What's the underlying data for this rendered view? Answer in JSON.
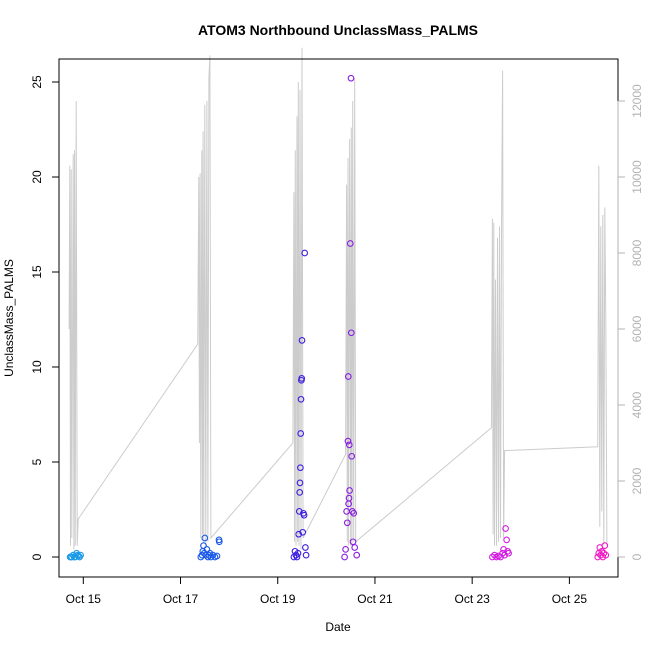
{
  "chart_data": {
    "type": "scatter",
    "title": "ATOM3 Northbound UnclassMass_PALMS",
    "xlabel": "Date",
    "ylabel": "UnclassMass_PALMS",
    "xlim": [
      "2017-10-14T12:00",
      "2017-10-26T00:00"
    ],
    "ylim": [
      0,
      25.2
    ],
    "x_ticks": [
      {
        "date": "2017-10-15",
        "label": "Oct 15"
      },
      {
        "date": "2017-10-17",
        "label": "Oct 17"
      },
      {
        "date": "2017-10-19",
        "label": "Oct 19"
      },
      {
        "date": "2017-10-21",
        "label": "Oct 21"
      },
      {
        "date": "2017-10-23",
        "label": "Oct 23"
      },
      {
        "date": "2017-10-25",
        "label": "Oct 25"
      }
    ],
    "y_ticks": [
      0,
      5,
      10,
      15,
      20,
      25
    ],
    "y2_ticks": [
      0,
      2000,
      4000,
      6000,
      8000,
      10000,
      12000
    ],
    "y2lim": [
      0,
      12900
    ],
    "line_color": "#cccccc",
    "grid": false,
    "legend": "none",
    "flights": [
      {
        "color": "#1e9be6",
        "points": [
          [
            "2017-10-14T17:30",
            0
          ],
          [
            "2017-10-14T17:50",
            0
          ],
          [
            "2017-10-14T18:20",
            0
          ],
          [
            "2017-10-14T19:00",
            0.1
          ],
          [
            "2017-10-14T19:30",
            0
          ],
          [
            "2017-10-14T20:00",
            0
          ],
          [
            "2017-10-14T20:40",
            0.2
          ],
          [
            "2017-10-14T21:10",
            0.1
          ],
          [
            "2017-10-14T21:40",
            0.05
          ],
          [
            "2017-10-14T22:10",
            0
          ],
          [
            "2017-10-14T22:40",
            0.1
          ]
        ]
      },
      {
        "color": "#1a59e8",
        "points": [
          [
            "2017-10-17T10:00",
            0
          ],
          [
            "2017-10-17T10:40",
            0.1
          ],
          [
            "2017-10-17T11:00",
            0.3
          ],
          [
            "2017-10-17T11:20",
            0.6
          ],
          [
            "2017-10-17T11:40",
            0.2
          ],
          [
            "2017-10-17T12:00",
            1.0
          ],
          [
            "2017-10-17T12:30",
            0.1
          ],
          [
            "2017-10-17T13:00",
            0.4
          ],
          [
            "2017-10-17T13:30",
            0
          ],
          [
            "2017-10-17T14:00",
            0.1
          ],
          [
            "2017-10-17T14:30",
            0.2
          ],
          [
            "2017-10-17T15:00",
            0
          ],
          [
            "2017-10-17T16:00",
            0.1
          ],
          [
            "2017-10-17T17:00",
            0
          ],
          [
            "2017-10-17T18:00",
            0.05
          ],
          [
            "2017-10-17T19:00",
            0.9
          ],
          [
            "2017-10-17T19:10",
            0.8
          ]
        ]
      },
      {
        "color": "#3b1fe0",
        "points": [
          [
            "2017-10-19T08:00",
            0
          ],
          [
            "2017-10-19T08:30",
            0.3
          ],
          [
            "2017-10-19T09:00",
            0.1
          ],
          [
            "2017-10-19T09:30",
            0
          ],
          [
            "2017-10-19T10:00",
            0.2
          ],
          [
            "2017-10-19T10:20",
            1.2
          ],
          [
            "2017-10-19T10:40",
            2.4
          ],
          [
            "2017-10-19T10:50",
            3.4
          ],
          [
            "2017-10-19T11:00",
            3.9
          ],
          [
            "2017-10-19T11:10",
            4.7
          ],
          [
            "2017-10-19T11:20",
            6.5
          ],
          [
            "2017-10-19T11:30",
            8.3
          ],
          [
            "2017-10-19T11:40",
            9.3
          ],
          [
            "2017-10-19T11:50",
            9.4
          ],
          [
            "2017-10-19T12:00",
            11.4
          ],
          [
            "2017-10-19T12:20",
            1.3
          ],
          [
            "2017-10-19T12:40",
            2.3
          ],
          [
            "2017-10-19T13:00",
            2.2
          ],
          [
            "2017-10-19T13:20",
            16.0
          ],
          [
            "2017-10-19T13:40",
            0.5
          ],
          [
            "2017-10-19T14:00",
            0.1
          ]
        ]
      },
      {
        "color": "#8a1de0",
        "points": [
          [
            "2017-10-20T09:00",
            0
          ],
          [
            "2017-10-20T09:30",
            0.4
          ],
          [
            "2017-10-20T10:00",
            2.4
          ],
          [
            "2017-10-20T10:20",
            1.8
          ],
          [
            "2017-10-20T10:40",
            6.1
          ],
          [
            "2017-10-20T10:50",
            9.5
          ],
          [
            "2017-10-20T11:00",
            2.8
          ],
          [
            "2017-10-20T11:10",
            3.1
          ],
          [
            "2017-10-20T11:20",
            5.9
          ],
          [
            "2017-10-20T11:30",
            3.5
          ],
          [
            "2017-10-20T11:50",
            16.5
          ],
          [
            "2017-10-20T12:10",
            25.2
          ],
          [
            "2017-10-20T12:20",
            11.8
          ],
          [
            "2017-10-20T12:30",
            5.3
          ],
          [
            "2017-10-20T12:50",
            2.4
          ],
          [
            "2017-10-20T13:10",
            0.8
          ],
          [
            "2017-10-20T13:30",
            2.3
          ],
          [
            "2017-10-20T14:00",
            0.5
          ],
          [
            "2017-10-20T15:00",
            0.1
          ]
        ]
      },
      {
        "color": "#d21de0",
        "points": [
          [
            "2017-10-23T10:00",
            0
          ],
          [
            "2017-10-23T11:00",
            0.1
          ],
          [
            "2017-10-23T12:00",
            0
          ],
          [
            "2017-10-23T13:00",
            0.05
          ],
          [
            "2017-10-23T14:00",
            0
          ],
          [
            "2017-10-23T15:00",
            0.2
          ],
          [
            "2017-10-23T15:30",
            0.4
          ],
          [
            "2017-10-23T16:00",
            0.1
          ],
          [
            "2017-10-23T16:30",
            1.5
          ],
          [
            "2017-10-23T17:00",
            0.9
          ],
          [
            "2017-10-23T17:30",
            0.3
          ],
          [
            "2017-10-23T18:00",
            0.2
          ]
        ]
      },
      {
        "color": "#f01ec3",
        "points": [
          [
            "2017-10-25T14:00",
            0
          ],
          [
            "2017-10-25T14:30",
            0.2
          ],
          [
            "2017-10-25T15:00",
            0.5
          ],
          [
            "2017-10-25T15:30",
            0.1
          ],
          [
            "2017-10-25T16:00",
            0.3
          ],
          [
            "2017-10-25T16:30",
            0
          ],
          [
            "2017-10-25T17:00",
            0.2
          ],
          [
            "2017-10-25T17:30",
            0.6
          ],
          [
            "2017-10-25T18:00",
            0.1
          ]
        ]
      }
    ],
    "secondary_series": {
      "name": "",
      "axis": "right",
      "points": [
        [
          "2017-10-14T17:00",
          6000
        ],
        [
          "2017-10-14T17:20",
          10300
        ],
        [
          "2017-10-14T17:40",
          300
        ],
        [
          "2017-10-14T18:00",
          10200
        ],
        [
          "2017-10-14T18:20",
          500
        ],
        [
          "2017-10-14T19:00",
          10600
        ],
        [
          "2017-10-14T19:20",
          200
        ],
        [
          "2017-10-14T19:40",
          10700
        ],
        [
          "2017-10-14T20:00",
          300
        ],
        [
          "2017-10-14T20:30",
          12000
        ],
        [
          "2017-10-14T21:00",
          300
        ],
        [
          "2017-10-14T21:30",
          1000
        ],
        [
          "2017-10-17T08:30",
          5600
        ],
        [
          "2017-10-17T09:00",
          10000
        ],
        [
          "2017-10-17T09:20",
          3000
        ],
        [
          "2017-10-17T09:40",
          10100
        ],
        [
          "2017-10-17T10:00",
          500
        ],
        [
          "2017-10-17T10:30",
          10700
        ],
        [
          "2017-10-17T10:50",
          600
        ],
        [
          "2017-10-17T11:10",
          11200
        ],
        [
          "2017-10-17T11:30",
          400
        ],
        [
          "2017-10-17T12:00",
          11900
        ],
        [
          "2017-10-17T12:30",
          300
        ],
        [
          "2017-10-17T13:00",
          12000
        ],
        [
          "2017-10-17T13:30",
          400
        ],
        [
          "2017-10-17T14:00",
          12600
        ],
        [
          "2017-10-17T14:30",
          13200
        ],
        [
          "2017-10-17T15:00",
          500
        ],
        [
          "2017-10-19T07:30",
          3000
        ],
        [
          "2017-10-19T08:00",
          9600
        ],
        [
          "2017-10-19T08:20",
          400
        ],
        [
          "2017-10-19T08:40",
          10700
        ],
        [
          "2017-10-19T09:00",
          300
        ],
        [
          "2017-10-19T09:30",
          11600
        ],
        [
          "2017-10-19T09:50",
          400
        ],
        [
          "2017-10-19T10:10",
          12500
        ],
        [
          "2017-10-19T10:30",
          300
        ],
        [
          "2017-10-19T11:00",
          12300
        ],
        [
          "2017-10-19T11:30",
          200
        ],
        [
          "2017-10-19T12:00",
          13400
        ],
        [
          "2017-10-19T12:30",
          500
        ],
        [
          "2017-10-20T09:30",
          2700
        ],
        [
          "2017-10-20T10:00",
          9800
        ],
        [
          "2017-10-20T10:20",
          400
        ],
        [
          "2017-10-20T10:40",
          10500
        ],
        [
          "2017-10-20T11:00",
          300
        ],
        [
          "2017-10-20T11:30",
          11000
        ],
        [
          "2017-10-20T12:00",
          300
        ],
        [
          "2017-10-20T12:20",
          11300
        ],
        [
          "2017-10-20T12:40",
          300
        ],
        [
          "2017-10-20T13:00",
          12000
        ],
        [
          "2017-10-20T13:30",
          400
        ],
        [
          "2017-10-20T14:00",
          12600
        ],
        [
          "2017-10-20T14:30",
          400
        ],
        [
          "2017-10-23T09:30",
          3400
        ],
        [
          "2017-10-23T10:00",
          8900
        ],
        [
          "2017-10-23T10:20",
          600
        ],
        [
          "2017-10-23T10:40",
          8800
        ],
        [
          "2017-10-23T11:00",
          300
        ],
        [
          "2017-10-23T11:30",
          7300
        ],
        [
          "2017-10-23T12:00",
          300
        ],
        [
          "2017-10-23T12:30",
          8400
        ],
        [
          "2017-10-23T13:00",
          400
        ],
        [
          "2017-10-23T13:30",
          8700
        ],
        [
          "2017-10-23T14:00",
          500
        ],
        [
          "2017-10-23T14:30",
          8600
        ],
        [
          "2017-10-23T15:00",
          12800
        ],
        [
          "2017-10-23T15:30",
          500
        ],
        [
          "2017-10-23T16:00",
          2800
        ],
        [
          "2017-10-25T14:00",
          2900
        ],
        [
          "2017-10-25T14:30",
          10300
        ],
        [
          "2017-10-25T15:00",
          800
        ],
        [
          "2017-10-25T15:30",
          8700
        ],
        [
          "2017-10-25T16:00",
          1200
        ],
        [
          "2017-10-25T16:30",
          9000
        ],
        [
          "2017-10-25T17:00",
          300
        ],
        [
          "2017-10-25T17:30",
          9200
        ],
        [
          "2017-10-25T18:00",
          6300
        ],
        [
          "2017-10-25T18:30",
          300
        ]
      ]
    }
  }
}
